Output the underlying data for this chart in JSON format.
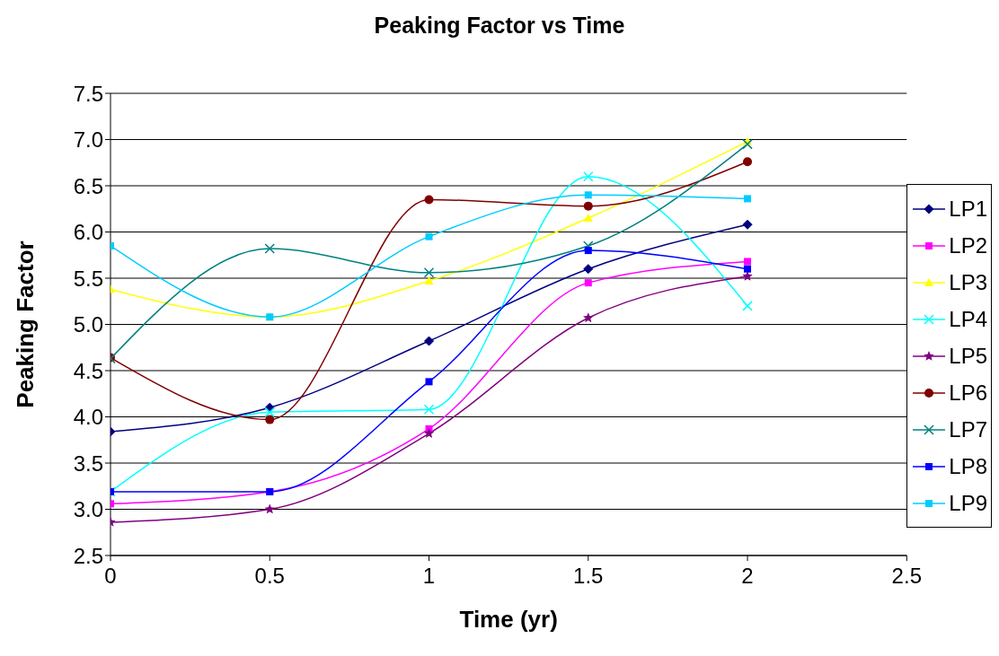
{
  "chart_data": {
    "type": "line",
    "title": "Peaking Factor vs Time",
    "xlabel": "Time (yr)",
    "ylabel": "Peaking Factor",
    "x": [
      0,
      0.5,
      1,
      1.5,
      2
    ],
    "xlim": [
      0,
      2.5
    ],
    "xticks": [
      0,
      0.5,
      1,
      1.5,
      2,
      2.5
    ],
    "ylim": [
      2.5,
      7.5
    ],
    "yticks": [
      {
        "value": 2.5,
        "label": "2.5"
      },
      {
        "value": 3,
        "label": "3.0"
      },
      {
        "value": 3.5,
        "label": "3.5"
      },
      {
        "value": 4,
        "label": "4.0"
      },
      {
        "value": 4.5,
        "label": "4.5"
      },
      {
        "value": 5,
        "label": "5.0"
      },
      {
        "value": 5.5,
        "label": "5.5"
      },
      {
        "value": 6,
        "label": "6.0"
      },
      {
        "value": 6.5,
        "label": "6.5"
      },
      {
        "value": 7,
        "label": "7.0"
      },
      {
        "value": 7.5,
        "label": "7.5"
      }
    ],
    "grid": "y",
    "legend": "right",
    "line_style": "solid",
    "series": [
      {
        "name": "LP1",
        "color": "#000080",
        "marker": "diamond",
        "values": [
          3.84,
          4.1,
          4.82,
          5.6,
          6.08
        ]
      },
      {
        "name": "LP2",
        "color": "#ff00ff",
        "marker": "square",
        "values": [
          3.06,
          3.19,
          3.87,
          5.45,
          5.68
        ]
      },
      {
        "name": "LP3",
        "color": "#ffff00",
        "marker": "triangle",
        "values": [
          5.38,
          5.08,
          5.47,
          6.15,
          6.98
        ]
      },
      {
        "name": "LP4",
        "color": "#00ffff",
        "marker": "cross",
        "values": [
          3.19,
          4.05,
          4.08,
          6.6,
          5.2
        ]
      },
      {
        "name": "LP5",
        "color": "#800080",
        "marker": "star",
        "values": [
          2.86,
          3.0,
          3.82,
          5.07,
          5.52
        ]
      },
      {
        "name": "LP6",
        "color": "#800000",
        "marker": "circle",
        "values": [
          4.64,
          3.97,
          6.35,
          6.28,
          6.76
        ]
      },
      {
        "name": "LP7",
        "color": "#008080",
        "marker": "cross",
        "values": [
          4.63,
          5.82,
          5.56,
          5.85,
          6.95
        ]
      },
      {
        "name": "LP8",
        "color": "#0000ff",
        "marker": "square",
        "values": [
          3.19,
          3.19,
          4.38,
          5.8,
          5.6
        ]
      },
      {
        "name": "LP9",
        "color": "#00ccff",
        "marker": "square",
        "values": [
          5.85,
          5.08,
          5.95,
          6.4,
          6.36
        ]
      }
    ]
  }
}
